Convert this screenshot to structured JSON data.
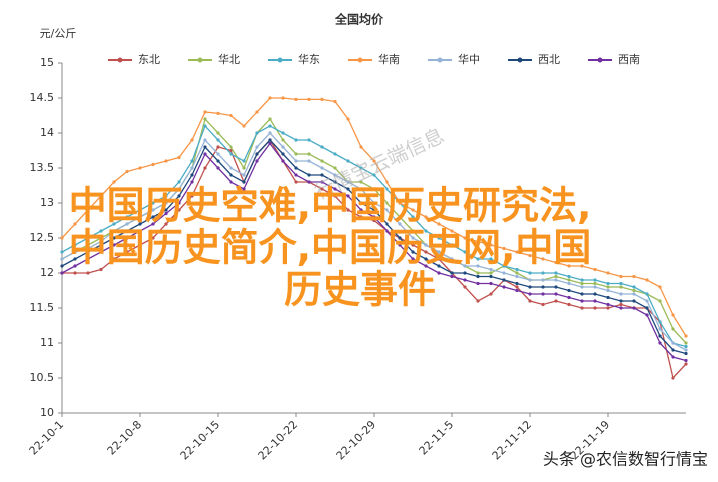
{
  "chart_data": {
    "type": "line",
    "title": "全国均价",
    "y_label": "元/公斤",
    "categories": [
      "22-10-1",
      null,
      null,
      null,
      null,
      null,
      "22-10-8",
      null,
      null,
      null,
      null,
      null,
      "22-10-15",
      null,
      null,
      null,
      null,
      null,
      "22-10-22",
      null,
      null,
      null,
      null,
      null,
      "22-10-29",
      null,
      null,
      null,
      null,
      null,
      "22-11-5",
      null,
      null,
      null,
      null,
      null,
      "22-11-12",
      null,
      null,
      null,
      null,
      null,
      "22-11-19",
      null,
      null,
      null,
      null,
      null,
      null
    ],
    "ylim": [
      10,
      15
    ],
    "yticks": [
      10,
      10.5,
      11,
      11.5,
      12,
      12.5,
      13,
      13.5,
      14,
      14.5,
      15
    ],
    "legend": "top",
    "series": [
      {
        "name": "东北",
        "color": "#c0504d",
        "values": [
          12.0,
          12.0,
          12.0,
          12.05,
          12.2,
          12.3,
          12.4,
          12.5,
          12.7,
          12.9,
          13.1,
          13.5,
          13.8,
          13.75,
          13.3,
          13.7,
          13.9,
          13.6,
          13.3,
          13.3,
          13.2,
          13.1,
          12.9,
          12.8,
          12.75,
          12.6,
          12.5,
          12.4,
          12.3,
          12.2,
          12.0,
          11.8,
          11.6,
          11.7,
          11.9,
          11.8,
          11.6,
          11.55,
          11.6,
          11.55,
          11.5,
          11.5,
          11.5,
          11.55,
          11.5,
          11.5,
          11.3,
          10.5,
          10.7
        ]
      },
      {
        "name": "华北",
        "color": "#9bbb59",
        "values": [
          12.2,
          12.3,
          12.4,
          12.5,
          12.6,
          12.7,
          12.8,
          12.9,
          13.0,
          13.2,
          13.5,
          14.2,
          14.0,
          13.8,
          13.5,
          14.0,
          14.2,
          13.9,
          13.7,
          13.7,
          13.6,
          13.5,
          13.3,
          13.3,
          13.2,
          13.0,
          12.8,
          12.6,
          12.4,
          12.3,
          12.2,
          12.1,
          12.0,
          12.0,
          12.1,
          12.0,
          11.9,
          11.9,
          11.95,
          11.9,
          11.85,
          11.85,
          11.8,
          11.8,
          11.75,
          11.7,
          11.6,
          11.2,
          11.0
        ]
      },
      {
        "name": "华东",
        "color": "#4bacc6",
        "values": [
          12.3,
          12.4,
          12.5,
          12.6,
          12.7,
          12.8,
          12.9,
          13.0,
          13.1,
          13.3,
          13.6,
          14.1,
          13.9,
          13.7,
          13.6,
          14.0,
          14.1,
          14.0,
          13.9,
          13.9,
          13.8,
          13.7,
          13.6,
          13.5,
          13.4,
          13.2,
          13.0,
          12.8,
          12.6,
          12.5,
          12.4,
          12.3,
          12.2,
          12.2,
          12.1,
          12.05,
          12.0,
          12.0,
          12.0,
          11.95,
          11.9,
          11.9,
          11.85,
          11.85,
          11.8,
          11.7,
          11.3,
          11.0,
          10.95
        ]
      },
      {
        "name": "华南",
        "color": "#f79646",
        "values": [
          12.5,
          12.7,
          12.9,
          13.1,
          13.3,
          13.45,
          13.5,
          13.55,
          13.6,
          13.65,
          13.9,
          14.3,
          14.28,
          14.25,
          14.1,
          14.3,
          14.5,
          14.5,
          14.48,
          14.48,
          14.48,
          14.45,
          14.2,
          13.8,
          13.6,
          13.3,
          13.0,
          12.9,
          12.8,
          12.7,
          12.6,
          12.5,
          12.45,
          12.4,
          12.35,
          12.3,
          12.25,
          12.2,
          12.15,
          12.1,
          12.1,
          12.05,
          12.0,
          11.95,
          11.95,
          11.9,
          11.8,
          11.4,
          11.1
        ]
      },
      {
        "name": "华中",
        "color": "#95b3d7",
        "values": [
          12.2,
          12.3,
          12.35,
          12.45,
          12.6,
          12.7,
          12.8,
          12.9,
          13.0,
          13.2,
          13.5,
          13.9,
          13.7,
          13.5,
          13.4,
          13.8,
          14.0,
          13.8,
          13.6,
          13.6,
          13.5,
          13.4,
          13.3,
          13.2,
          13.0,
          12.9,
          12.7,
          12.5,
          12.4,
          12.3,
          12.2,
          12.1,
          12.1,
          12.05,
          12.0,
          11.95,
          11.9,
          11.9,
          11.9,
          11.85,
          11.8,
          11.8,
          11.75,
          11.7,
          11.7,
          11.6,
          11.2,
          11.0,
          10.9
        ]
      },
      {
        "name": "西北",
        "color": "#1f497d",
        "values": [
          12.1,
          12.2,
          12.3,
          12.4,
          12.5,
          12.6,
          12.7,
          12.8,
          12.9,
          13.1,
          13.4,
          13.8,
          13.6,
          13.4,
          13.3,
          13.7,
          13.9,
          13.7,
          13.5,
          13.4,
          13.4,
          13.3,
          13.2,
          13.0,
          12.9,
          12.7,
          12.5,
          12.3,
          12.2,
          12.1,
          12.0,
          12.0,
          11.95,
          11.95,
          11.9,
          11.85,
          11.8,
          11.8,
          11.8,
          11.75,
          11.7,
          11.7,
          11.65,
          11.6,
          11.6,
          11.5,
          11.1,
          10.9,
          10.85
        ]
      },
      {
        "name": "西南",
        "color": "#7030a0",
        "values": [
          12.0,
          12.1,
          12.2,
          12.3,
          12.4,
          12.5,
          12.6,
          12.7,
          12.85,
          13.0,
          13.3,
          13.7,
          13.5,
          13.3,
          13.2,
          13.6,
          13.85,
          13.6,
          13.4,
          13.3,
          13.3,
          13.2,
          13.1,
          12.9,
          12.8,
          12.6,
          12.4,
          12.2,
          12.1,
          12.0,
          11.95,
          11.9,
          11.85,
          11.85,
          11.8,
          11.75,
          11.7,
          11.7,
          11.7,
          11.65,
          11.6,
          11.6,
          11.55,
          11.5,
          11.5,
          11.4,
          11.0,
          10.8,
          10.75
        ]
      }
    ]
  },
  "watermark": "行情宝云端信息",
  "overlay_lines": [
    "中国历史空难,中国历史研究法,",
    "中国历史简介,中国历史网,中国",
    "历史事件"
  ],
  "footer": "头条 @农信数智行情宝"
}
